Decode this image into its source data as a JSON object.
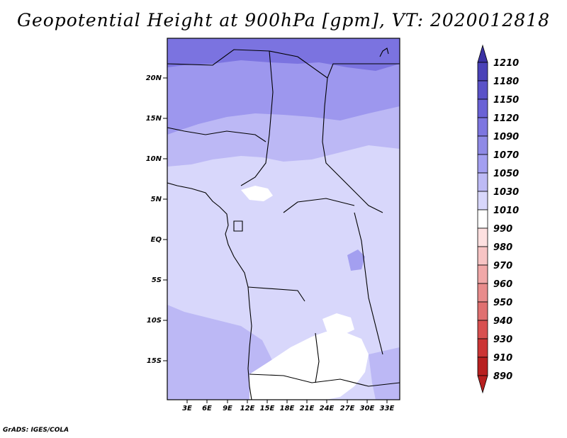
{
  "title": "Geopotential Height at 900hPa [gpm], VT: 2020012818",
  "credit": "GrADS: IGES/COLA",
  "lat_labels": [
    "20N",
    "15N",
    "10N",
    "5N",
    "EQ",
    "5S",
    "10S",
    "15S"
  ],
  "lon_labels": [
    "3E",
    "6E",
    "9E",
    "12E",
    "15E",
    "18E",
    "21E",
    "24E",
    "27E",
    "30E",
    "33E"
  ],
  "colorbar": {
    "labels": [
      "1210",
      "1180",
      "1150",
      "1120",
      "1090",
      "1070",
      "1050",
      "1030",
      "1010",
      "990",
      "980",
      "970",
      "960",
      "950",
      "940",
      "930",
      "910",
      "890"
    ],
    "colors": [
      "#3b32a3",
      "#4a42b8",
      "#5a52c8",
      "#6a62d6",
      "#7d76e0",
      "#8f8ae6",
      "#a39ff0",
      "#bdbaf5",
      "#d8d7fb",
      "#ffffff",
      "#fde0e0",
      "#f7c4c4",
      "#f0a8a8",
      "#e88c8c",
      "#e07070",
      "#d85050",
      "#cc3535",
      "#b82020"
    ]
  },
  "regions": {
    "north_band_color": "#7b73e0",
    "upper_band_color": "#9d97ee",
    "mid_band_color": "#bcb8f5",
    "base_color": "#d8d7fb",
    "low_region_color": "#ffffff",
    "border_color": "#000000"
  }
}
